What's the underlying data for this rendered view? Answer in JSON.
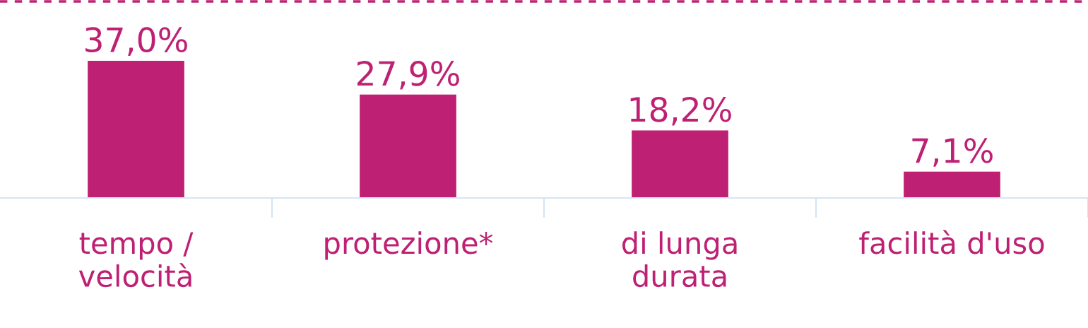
{
  "chart_data": {
    "type": "bar",
    "categories": [
      "tempo /\nvelocità",
      "protezione*",
      "di lunga\ndurata",
      "facilità d'uso"
    ],
    "values": [
      37.0,
      27.9,
      18.2,
      7.1
    ],
    "value_labels": [
      "37,0%",
      "27,9%",
      "18,2%",
      "7,1%"
    ],
    "color": "#be2173",
    "ylim": [
      0,
      53.4
    ],
    "ref_lines": [
      {
        "axis": "y",
        "value": 53.0,
        "color": "#be2173",
        "line_style": "dashed"
      }
    ],
    "grid": false,
    "legend": false
  }
}
